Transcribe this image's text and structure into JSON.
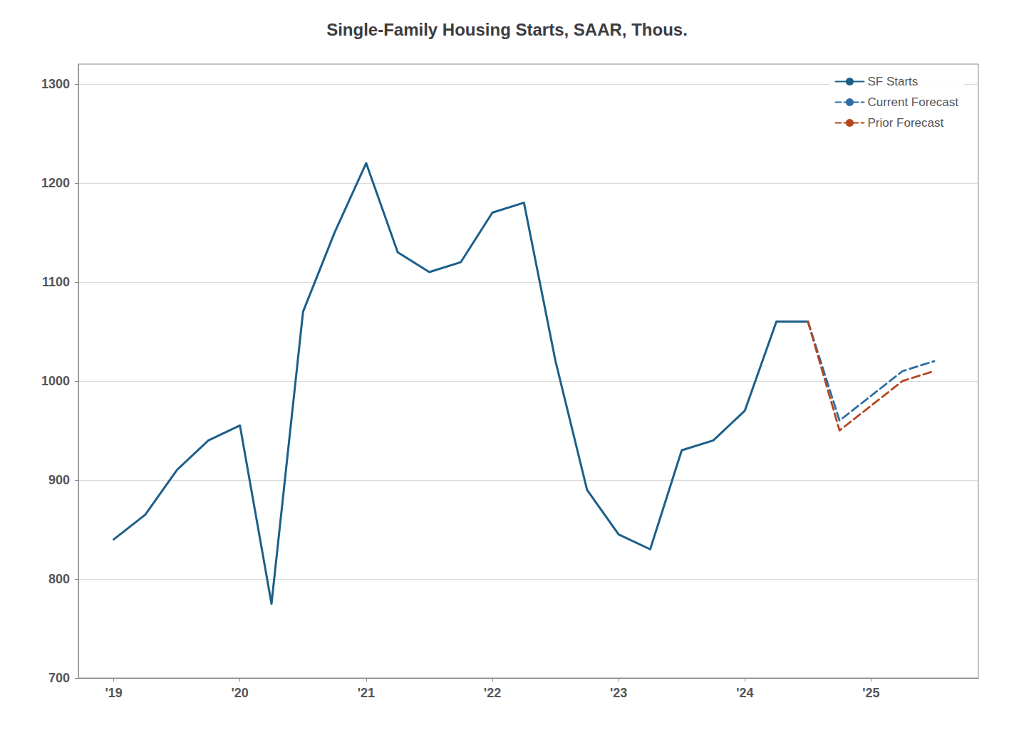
{
  "chart_data": {
    "type": "line",
    "title": "Single-Family Housing Starts, SAAR, Thous.",
    "series": [
      {
        "name": "SF Starts",
        "color": "#1d5f8a",
        "line_style": "solid",
        "x": [
          2019.0,
          2019.25,
          2019.5,
          2019.75,
          2020.0,
          2020.25,
          2020.5,
          2020.75,
          2021.0,
          2021.25,
          2021.5,
          2021.75,
          2022.0,
          2022.25,
          2022.5,
          2022.75,
          2023.0,
          2023.25,
          2023.5,
          2023.75,
          2024.0,
          2024.25,
          2024.5
        ],
        "values": [
          840,
          865,
          910,
          940,
          955,
          775,
          1070,
          1150,
          1220,
          1130,
          1110,
          1120,
          1170,
          1180,
          1020,
          890,
          845,
          830,
          930,
          940,
          970,
          1060,
          1060
        ]
      },
      {
        "name": "Current Forecast",
        "color": "#2e6da4",
        "line_style": "dashed",
        "x": [
          2024.5,
          2024.75,
          2025.0,
          2025.25,
          2025.5
        ],
        "values": [
          1060,
          960,
          985,
          1010,
          1020
        ]
      },
      {
        "name": "Prior Forecast",
        "color": "#b5461e",
        "line_style": "dashed",
        "x": [
          2024.5,
          2024.75,
          2025.0,
          2025.25,
          2025.5
        ],
        "values": [
          1060,
          950,
          975,
          1000,
          1010
        ]
      }
    ],
    "xlim": [
      2018.72,
      2025.85
    ],
    "xticks": [
      {
        "value": 2019,
        "label": "'19"
      },
      {
        "value": 2020,
        "label": "'20"
      },
      {
        "value": 2021,
        "label": "'21"
      },
      {
        "value": 2022,
        "label": "'22"
      },
      {
        "value": 2023,
        "label": "'23"
      },
      {
        "value": 2024,
        "label": "'24"
      },
      {
        "value": 2025,
        "label": "'25"
      }
    ],
    "ylim": [
      700,
      1320
    ],
    "yticks": [
      700,
      800,
      900,
      1000,
      1100,
      1200,
      1300
    ],
    "grid": true,
    "legend": "upper right"
  }
}
